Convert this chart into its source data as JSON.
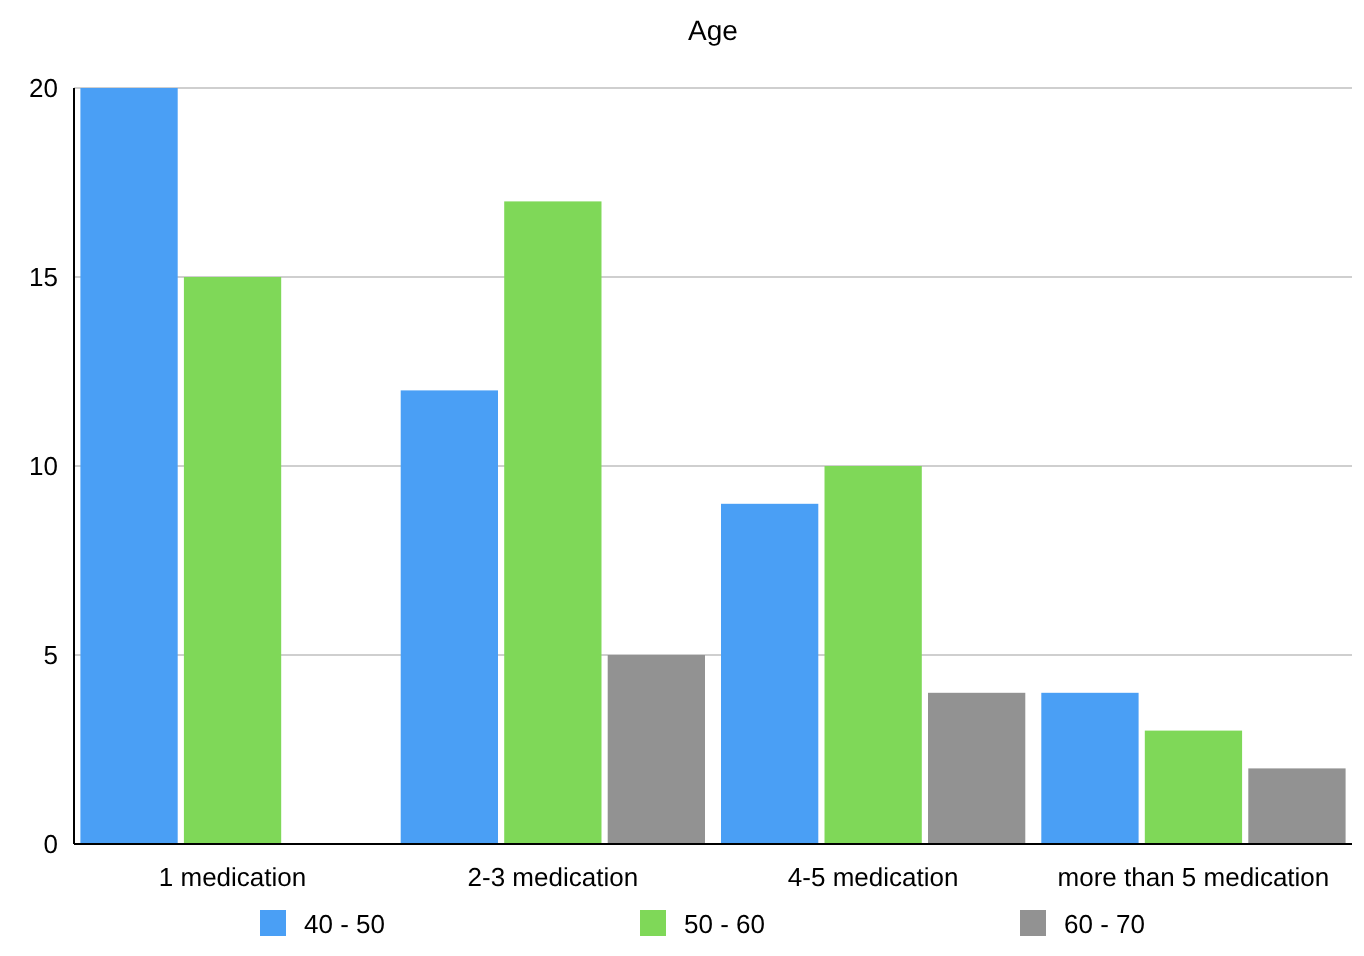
{
  "chart_data": {
    "type": "bar",
    "title": "Age",
    "categories": [
      "1 medication",
      "2-3 medication",
      "4-5 medication",
      "more than 5 medication"
    ],
    "series": [
      {
        "name": "40 - 50",
        "color": "#4a9ff5",
        "values": [
          20,
          12,
          9,
          4
        ]
      },
      {
        "name": "50 - 60",
        "color": "#7fd858",
        "values": [
          15,
          17,
          10,
          3
        ]
      },
      {
        "name": "60 - 70",
        "color": "#929292",
        "values": [
          null,
          5,
          4,
          2
        ]
      }
    ],
    "ylim": [
      0,
      20
    ],
    "yticks": [
      0,
      5,
      10,
      15,
      20
    ],
    "grid": "y",
    "legend": "bottom"
  }
}
